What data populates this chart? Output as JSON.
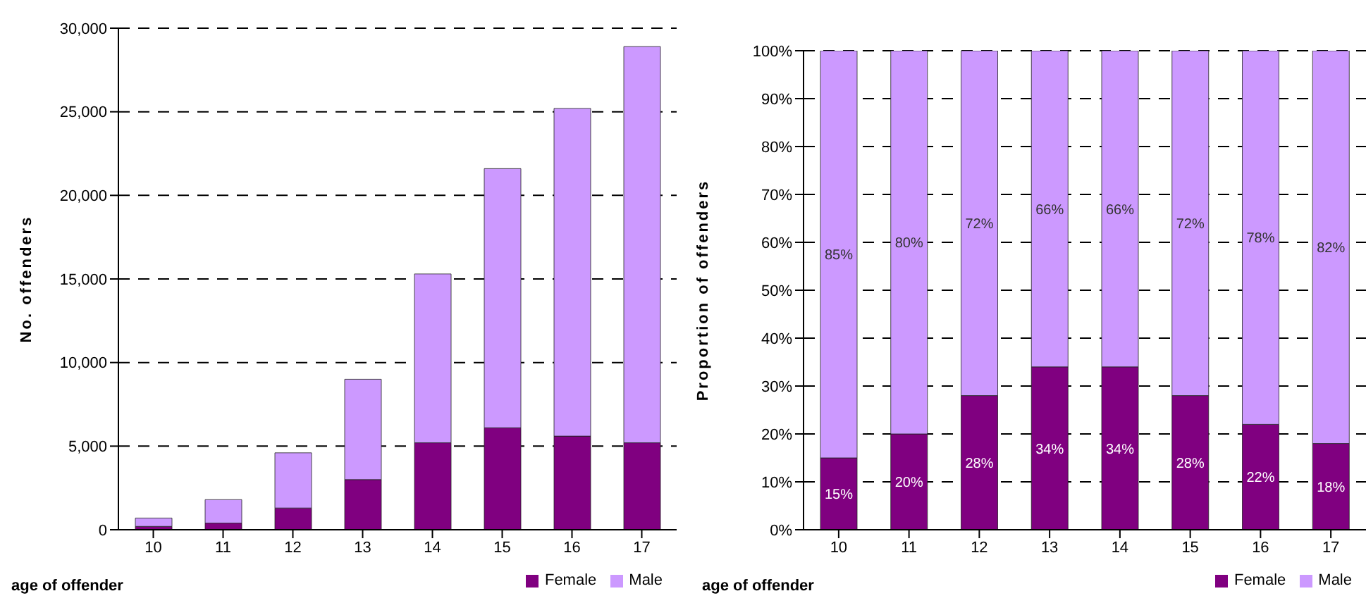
{
  "chart_data": [
    {
      "type": "bar",
      "stacked": true,
      "categories": [
        "10",
        "11",
        "12",
        "13",
        "14",
        "15",
        "16",
        "17"
      ],
      "xlabel": "age of offender",
      "ylabel": "No. offenders",
      "series": [
        {
          "name": "Female",
          "color": "#800080",
          "values": [
            200,
            400,
            1300,
            3000,
            5200,
            6100,
            5600,
            5200
          ]
        },
        {
          "name": "Male",
          "color": "#cc99ff",
          "values": [
            500,
            1400,
            3300,
            6000,
            10100,
            15500,
            19600,
            23700
          ]
        }
      ],
      "ylim": [
        0,
        30000
      ],
      "yticks": [
        {
          "value": 0,
          "label": "0"
        },
        {
          "value": 5000,
          "label": "5,000"
        },
        {
          "value": 10000,
          "label": "10,000"
        },
        {
          "value": 15000,
          "label": "15,000"
        },
        {
          "value": 20000,
          "label": "20,000"
        },
        {
          "value": 25000,
          "label": "25,000"
        },
        {
          "value": 30000,
          "label": "30,000"
        }
      ],
      "grid": "y",
      "legend": "bottom right"
    },
    {
      "type": "bar",
      "stacked": true,
      "categories": [
        "10",
        "11",
        "12",
        "13",
        "14",
        "15",
        "16",
        "17"
      ],
      "xlabel": "age of offender",
      "ylabel": "Proportion of offenders",
      "series": [
        {
          "name": "Female",
          "color": "#800080",
          "values": [
            15,
            20,
            28,
            34,
            34,
            28,
            22,
            18
          ],
          "value_labels": [
            "15%",
            "20%",
            "28%",
            "34%",
            "34%",
            "28%",
            "22%",
            "18%"
          ]
        },
        {
          "name": "Male",
          "color": "#cc99ff",
          "values": [
            85,
            80,
            72,
            66,
            66,
            72,
            78,
            82
          ],
          "value_labels": [
            "85%",
            "80%",
            "72%",
            "66%",
            "66%",
            "72%",
            "78%",
            "82%"
          ]
        }
      ],
      "ylim": [
        0,
        100
      ],
      "yticks": [
        {
          "value": 0,
          "label": "0%"
        },
        {
          "value": 10,
          "label": "10%"
        },
        {
          "value": 20,
          "label": "20%"
        },
        {
          "value": 30,
          "label": "30%"
        },
        {
          "value": 40,
          "label": "40%"
        },
        {
          "value": 50,
          "label": "50%"
        },
        {
          "value": 60,
          "label": "60%"
        },
        {
          "value": 70,
          "label": "70%"
        },
        {
          "value": 80,
          "label": "80%"
        },
        {
          "value": 90,
          "label": "90%"
        },
        {
          "value": 100,
          "label": "100%"
        }
      ],
      "grid": "y",
      "legend": "bottom right"
    }
  ]
}
